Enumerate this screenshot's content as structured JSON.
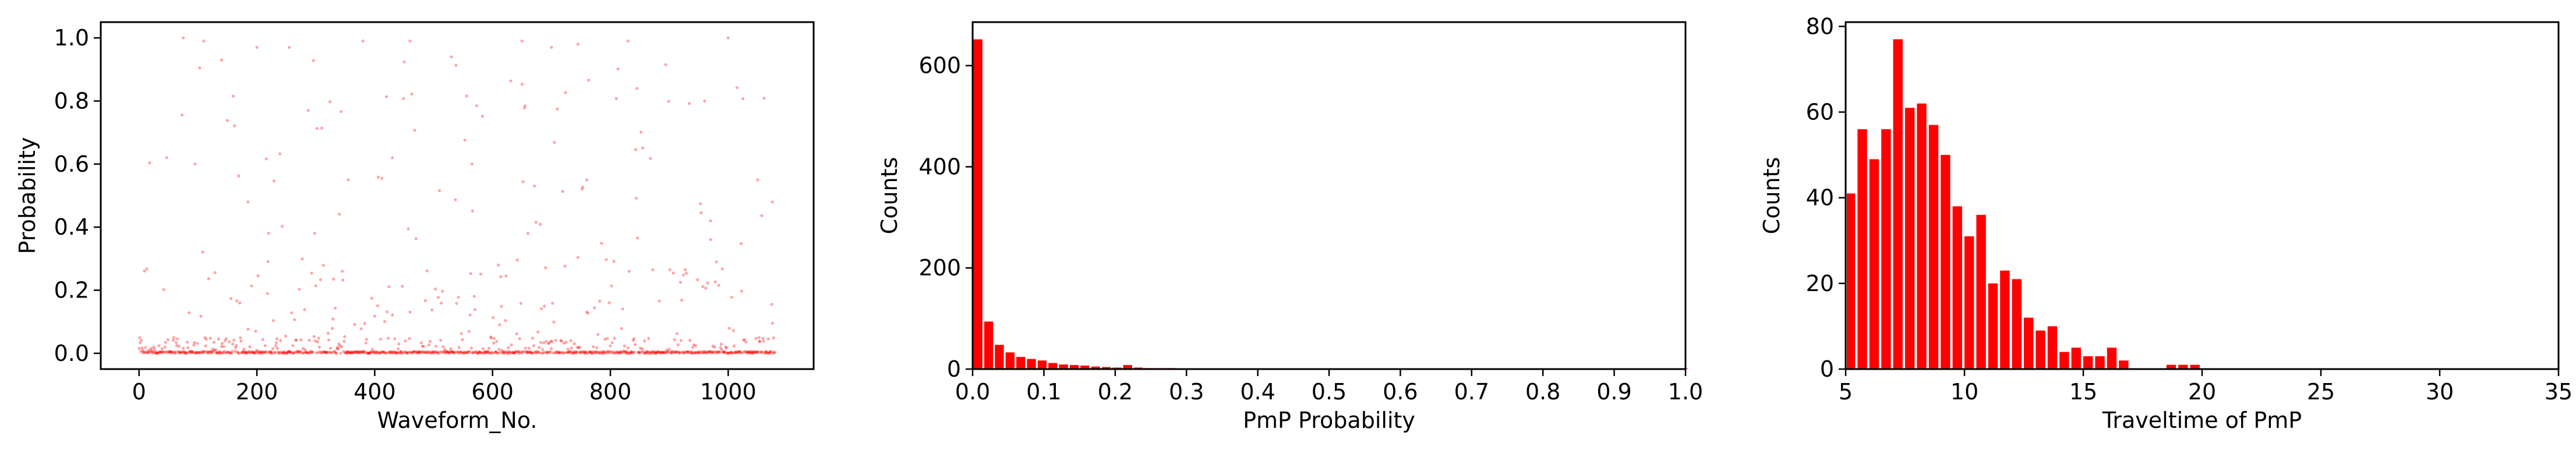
{
  "colors": {
    "mark": "#ff0000",
    "axis": "#000000",
    "background": "#ffffff"
  },
  "chart_data": [
    {
      "type": "scatter",
      "xlabel": "Waveform_No.",
      "ylabel": "Probability",
      "xlim": [
        -65,
        1145
      ],
      "ylim": [
        -0.05,
        1.05
      ],
      "xticks": [
        0,
        200,
        400,
        600,
        800,
        1000
      ],
      "yticks": [
        0.0,
        0.2,
        0.4,
        0.6,
        0.8,
        1.0
      ],
      "ytick_labels": [
        "0.0",
        "0.2",
        "0.4",
        "0.6",
        "0.8",
        "1.0"
      ],
      "n_points": 1080,
      "distribution_note": "",
      "highlighted_points": [
        {
          "x": 75,
          "y": 1.0
        },
        {
          "x": 110,
          "y": 0.99
        },
        {
          "x": 200,
          "y": 0.97
        },
        {
          "x": 255,
          "y": 0.97
        },
        {
          "x": 380,
          "y": 0.99
        },
        {
          "x": 460,
          "y": 0.99
        },
        {
          "x": 530,
          "y": 0.94
        },
        {
          "x": 650,
          "y": 0.99
        },
        {
          "x": 700,
          "y": 0.97
        },
        {
          "x": 745,
          "y": 0.98
        },
        {
          "x": 830,
          "y": 0.99
        },
        {
          "x": 1000,
          "y": 1.0
        },
        {
          "x": 140,
          "y": 0.93
        },
        {
          "x": 95,
          "y": 0.6
        },
        {
          "x": 185,
          "y": 0.48
        },
        {
          "x": 355,
          "y": 0.55
        },
        {
          "x": 430,
          "y": 0.62
        },
        {
          "x": 565,
          "y": 0.6
        },
        {
          "x": 760,
          "y": 0.55
        },
        {
          "x": 970,
          "y": 0.42
        },
        {
          "x": 1050,
          "y": 0.55
        },
        {
          "x": 1075,
          "y": 0.48
        },
        {
          "x": 960,
          "y": 0.8
        },
        {
          "x": 660,
          "y": 0.38
        }
      ]
    },
    {
      "type": "bar",
      "xlabel": "PmP Probability",
      "ylabel": "Counts",
      "xlim": [
        0.0,
        1.0
      ],
      "ylim": [
        0,
        686
      ],
      "xticks": [
        0.0,
        0.1,
        0.2,
        0.3,
        0.4,
        0.5,
        0.6,
        0.7,
        0.8,
        0.9,
        1.0
      ],
      "xtick_labels": [
        "0.0",
        "0.1",
        "0.2",
        "0.3",
        "0.4",
        "0.5",
        "0.6",
        "0.7",
        "0.8",
        "0.9",
        "1.0"
      ],
      "yticks": [
        0,
        200,
        400,
        600
      ],
      "bin_width": 0.015,
      "values": [
        652,
        94,
        48,
        33,
        24,
        20,
        17,
        12,
        9,
        8,
        7,
        5,
        4,
        3,
        8,
        3,
        2,
        2,
        2,
        1,
        1,
        1,
        1,
        1,
        1,
        1,
        1,
        1,
        1,
        1,
        1,
        1,
        1,
        1,
        1,
        1,
        1,
        1,
        1,
        1,
        1,
        1,
        1,
        1,
        1,
        1,
        1,
        1,
        1,
        1,
        1,
        1,
        1,
        1,
        1,
        1,
        1,
        1,
        1,
        1,
        1,
        1,
        1,
        1,
        1,
        1,
        1
      ]
    },
    {
      "type": "bar",
      "xlabel": "Traveltime of PmP",
      "ylabel": "Counts",
      "xlim": [
        5,
        35
      ],
      "ylim": [
        0,
        81
      ],
      "xticks": [
        5,
        10,
        15,
        20,
        25,
        30,
        35
      ],
      "yticks": [
        0,
        20,
        40,
        60,
        80
      ],
      "bin_start": 4.95,
      "bin_width": 0.5,
      "values": [
        41,
        56,
        49,
        56,
        77,
        61,
        62,
        57,
        50,
        38,
        31,
        36,
        20,
        23,
        21,
        12,
        9,
        10,
        4,
        5,
        3,
        3,
        5,
        2,
        0,
        0,
        0,
        1,
        1,
        1
      ]
    }
  ]
}
